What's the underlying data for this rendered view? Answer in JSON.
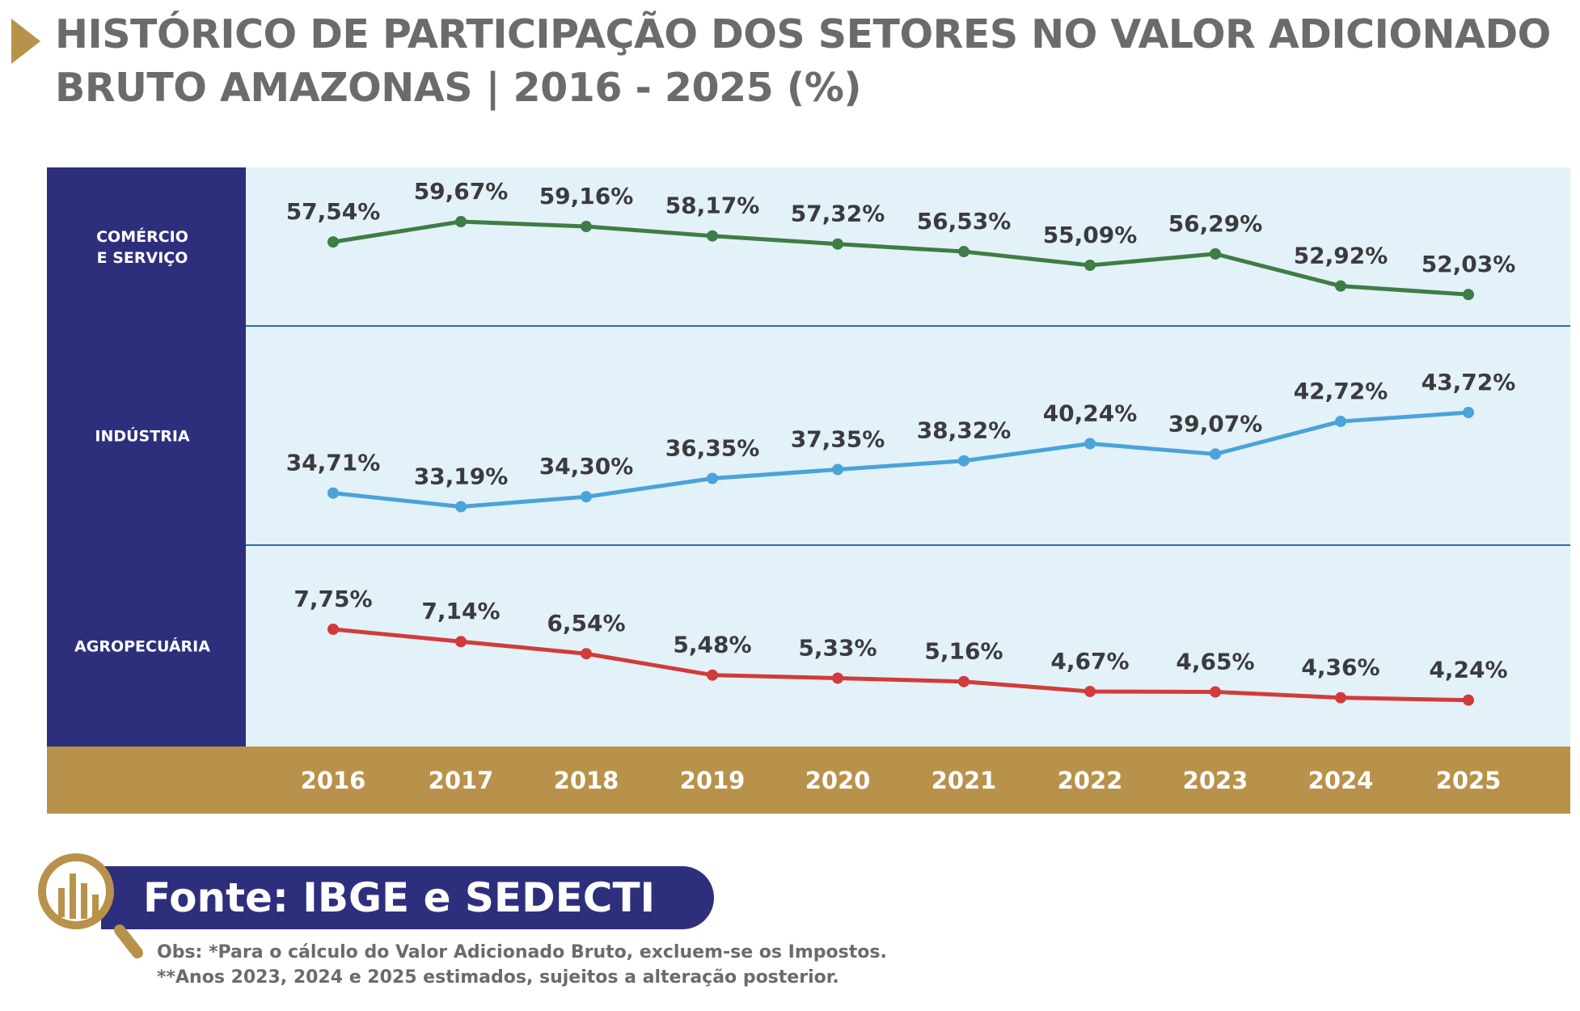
{
  "title_line1": "HISTÓRICO DE PARTICIPAÇÃO DOS SETORES NO VALOR ADICIONADO",
  "title_line2": "BRUTO AMAZONAS | 2016 - 2025 (%)",
  "colors": {
    "navy": "#2e2f7c",
    "gold": "#b8924a",
    "panel": "#e3f1f9",
    "comercio": "#3e7d45",
    "industria": "#4aa3d9",
    "agro": "#d23b3b"
  },
  "chart_data": {
    "type": "line",
    "categories": [
      "2016",
      "2017",
      "2018",
      "2019",
      "2020",
      "2021",
      "2022",
      "2023",
      "2024",
      "2025"
    ],
    "series": [
      {
        "name": "COMÉRCIO E SERVIÇO",
        "name_lines": [
          "COMÉRCIO",
          "E SERVIÇO"
        ],
        "values": [
          57.54,
          59.67,
          59.16,
          58.17,
          57.32,
          56.53,
          55.09,
          56.29,
          52.92,
          52.03
        ],
        "labels": [
          "57,54%",
          "59,67%",
          "59,16%",
          "58,17%",
          "57,32%",
          "56,53%",
          "55,09%",
          "56,29%",
          "52,92%",
          "52,03%"
        ],
        "color": "#3e7d45"
      },
      {
        "name": "INDÚSTRIA",
        "name_lines": [
          "INDÚSTRIA"
        ],
        "values": [
          34.71,
          33.19,
          34.3,
          36.35,
          37.35,
          38.32,
          40.24,
          39.07,
          42.72,
          43.72
        ],
        "labels": [
          "34,71%",
          "33,19%",
          "34,30%",
          "36,35%",
          "37,35%",
          "38,32%",
          "40,24%",
          "39,07%",
          "42,72%",
          "43,72%"
        ],
        "color": "#4aa3d9"
      },
      {
        "name": "AGROPECUÁRIA",
        "name_lines": [
          "AGROPECUÁRIA"
        ],
        "values": [
          7.75,
          7.14,
          6.54,
          5.48,
          5.33,
          5.16,
          4.67,
          4.65,
          4.36,
          4.24
        ],
        "labels": [
          "7,75%",
          "7,14%",
          "6,54%",
          "5,48%",
          "5,33%",
          "5,16%",
          "4,67%",
          "4,65%",
          "4,36%",
          "4,24%"
        ],
        "color": "#d23b3b"
      }
    ],
    "grid": false
  },
  "footer": {
    "source": "Fonte: IBGE e SEDECTI",
    "note1": "Obs: *Para o cálculo do Valor Adicionado Bruto, excluem-se os Impostos.",
    "note2": "**Anos 2023, 2024 e 2025 estimados, sujeitos a alteração posterior."
  }
}
